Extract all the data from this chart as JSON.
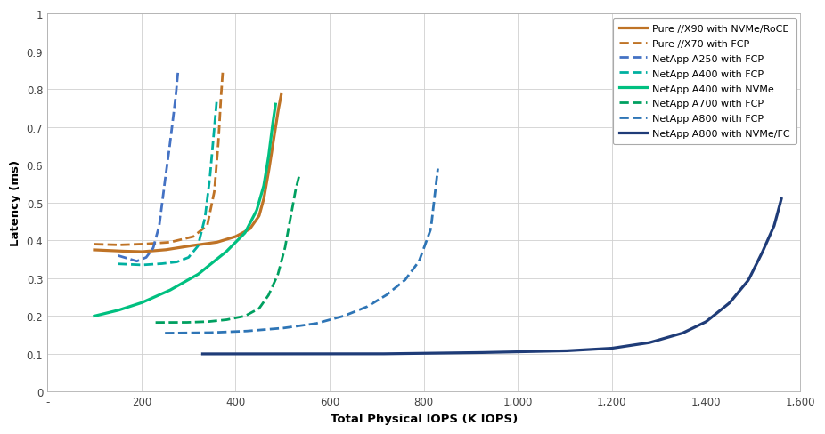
{
  "title": "",
  "xlabel": "Total Physical IOPS (K IOPS)",
  "ylabel": "Latency (ms)",
  "xlim": [
    0,
    1600
  ],
  "ylim": [
    0,
    1.0
  ],
  "xticks": [
    0,
    200,
    400,
    600,
    800,
    1000,
    1200,
    1400,
    1600
  ],
  "xtick_labels": [
    "-",
    "200",
    "400",
    "600",
    "800",
    "1,000",
    "1,200",
    "1,400",
    "1,600"
  ],
  "yticks": [
    0,
    0.1,
    0.2,
    0.3,
    0.4,
    0.5,
    0.6,
    0.7,
    0.8,
    0.9,
    1.0
  ],
  "ytick_labels": [
    "0",
    "0.1",
    "0.2",
    "0.3",
    "0.4",
    "0.5",
    "0.6",
    "0.7",
    "0.8",
    "0.9",
    "1"
  ],
  "series": [
    {
      "label": "Pure //X90 with NVMe/RoCE",
      "color": "#BF7326",
      "linestyle": "solid",
      "linewidth": 2.3,
      "x": [
        100,
        150,
        200,
        250,
        300,
        360,
        400,
        430,
        450,
        460,
        470,
        480,
        490,
        497
      ],
      "y": [
        0.375,
        0.372,
        0.37,
        0.375,
        0.385,
        0.395,
        0.41,
        0.43,
        0.465,
        0.51,
        0.58,
        0.66,
        0.74,
        0.785
      ]
    },
    {
      "label": "Pure //X70 with FCP",
      "color": "#BF7326",
      "linestyle": "dashed",
      "linewidth": 2.0,
      "x": [
        100,
        150,
        200,
        260,
        310,
        340,
        355,
        363,
        368,
        373
      ],
      "y": [
        0.39,
        0.388,
        0.39,
        0.395,
        0.41,
        0.44,
        0.53,
        0.65,
        0.76,
        0.85
      ]
    },
    {
      "label": "NetApp A250 with FCP",
      "color": "#4472C4",
      "linestyle": "dashed",
      "linewidth": 2.0,
      "x": [
        150,
        190,
        210,
        225,
        238,
        248,
        258,
        265,
        272,
        278
      ],
      "y": [
        0.36,
        0.345,
        0.355,
        0.38,
        0.44,
        0.54,
        0.63,
        0.7,
        0.77,
        0.85
      ]
    },
    {
      "label": "NetApp A400 with FCP",
      "color": "#00B0A0",
      "linestyle": "dashed",
      "linewidth": 2.0,
      "x": [
        150,
        200,
        240,
        275,
        300,
        320,
        335,
        345,
        353,
        360
      ],
      "y": [
        0.338,
        0.335,
        0.338,
        0.343,
        0.355,
        0.385,
        0.46,
        0.56,
        0.67,
        0.77
      ]
    },
    {
      "label": "NetApp A400 with NVMe",
      "color": "#00C080",
      "linestyle": "solid",
      "linewidth": 2.3,
      "x": [
        100,
        150,
        200,
        260,
        320,
        380,
        420,
        445,
        460,
        470,
        478,
        485
      ],
      "y": [
        0.2,
        0.215,
        0.235,
        0.268,
        0.31,
        0.37,
        0.42,
        0.48,
        0.545,
        0.62,
        0.7,
        0.76
      ]
    },
    {
      "label": "NetApp A700 with FCP",
      "color": "#00A060",
      "linestyle": "dashed",
      "linewidth": 2.0,
      "x": [
        230,
        290,
        340,
        380,
        420,
        450,
        470,
        490,
        505,
        517,
        527,
        535
      ],
      "y": [
        0.183,
        0.183,
        0.185,
        0.19,
        0.2,
        0.22,
        0.255,
        0.31,
        0.38,
        0.46,
        0.53,
        0.57
      ]
    },
    {
      "label": "NetApp A800 with FCP",
      "color": "#2E75B6",
      "linestyle": "dashed",
      "linewidth": 2.0,
      "x": [
        250,
        340,
        420,
        500,
        570,
        630,
        680,
        720,
        760,
        790,
        815,
        830
      ],
      "y": [
        0.155,
        0.156,
        0.16,
        0.168,
        0.18,
        0.2,
        0.225,
        0.255,
        0.295,
        0.345,
        0.43,
        0.59
      ]
    },
    {
      "label": "NetApp A800 with NVMe/FC",
      "color": "#1F3C78",
      "linestyle": "solid",
      "linewidth": 2.3,
      "x": [
        330,
        500,
        700,
        900,
        1100,
        1200,
        1280,
        1350,
        1400,
        1450,
        1490,
        1520,
        1545,
        1560
      ],
      "y": [
        0.1,
        0.1,
        0.1,
        0.103,
        0.108,
        0.115,
        0.13,
        0.155,
        0.185,
        0.235,
        0.295,
        0.37,
        0.44,
        0.51
      ]
    }
  ],
  "bg_color": "#FFFFFF",
  "grid_color": "#D0D0D0",
  "spine_color": "#B0B0B0"
}
